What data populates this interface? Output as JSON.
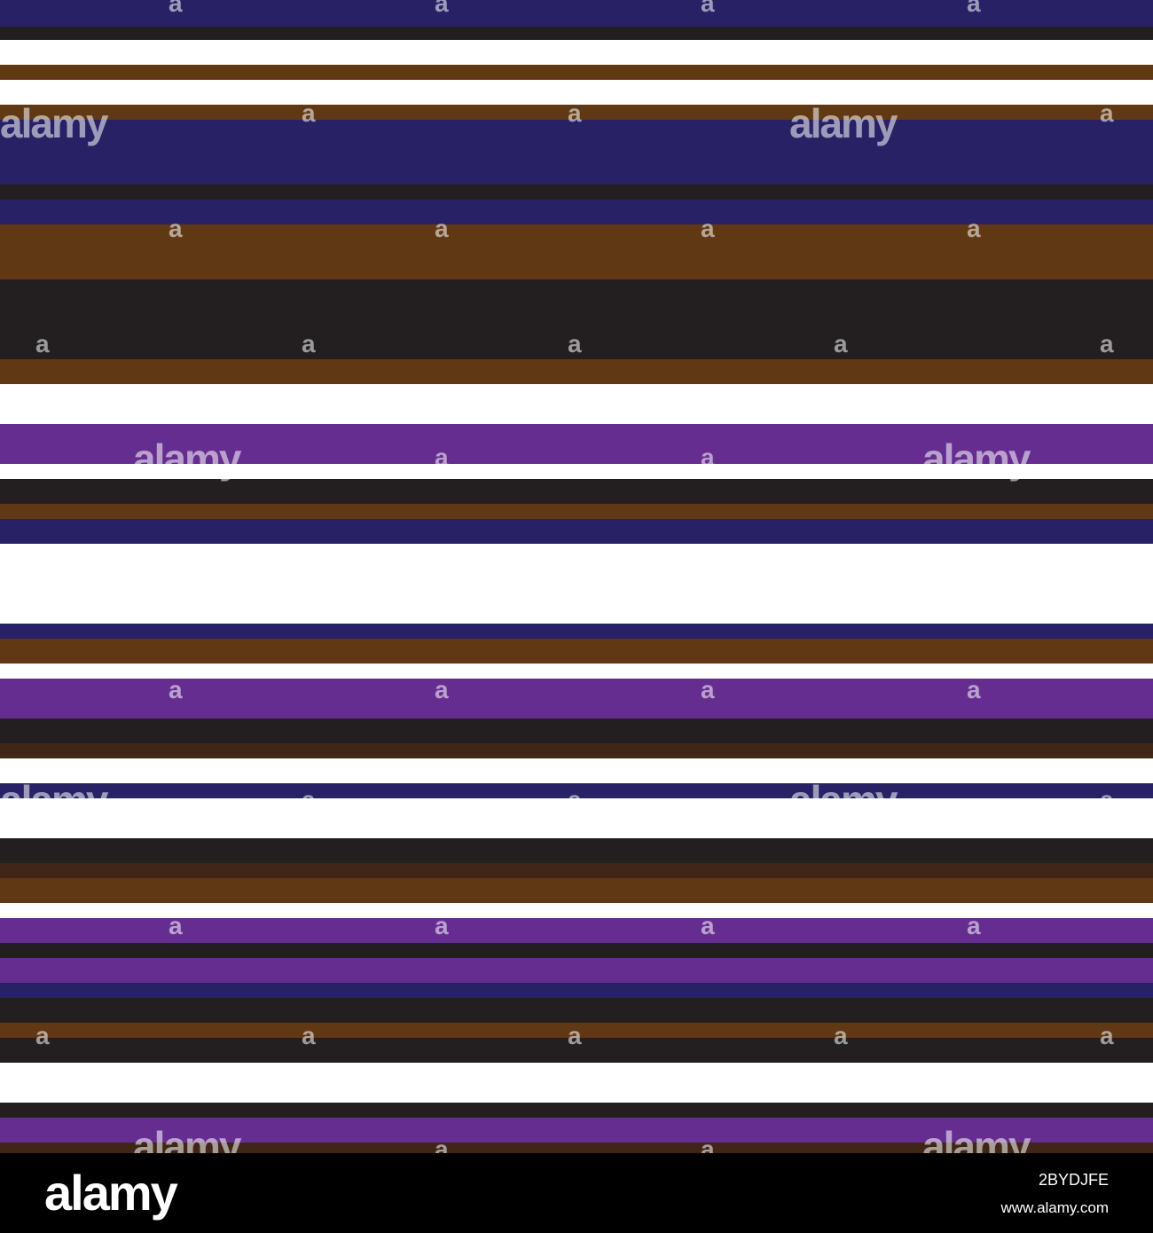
{
  "colors": {
    "navy": "#282165",
    "black": "#231f20",
    "brown": "#613814",
    "dark_brown": "#3f2617",
    "purple": "#662d91",
    "white": "#ffffff"
  },
  "stripes": [
    {
      "color": "navy",
      "h": 30
    },
    {
      "color": "black",
      "h": 15
    },
    {
      "color": "white",
      "h": 28
    },
    {
      "color": "brown",
      "h": 17
    },
    {
      "color": "white",
      "h": 28
    },
    {
      "color": "brown",
      "h": 17
    },
    {
      "color": "navy",
      "h": 73
    },
    {
      "color": "black",
      "h": 17
    },
    {
      "color": "navy",
      "h": 28
    },
    {
      "color": "brown",
      "h": 62
    },
    {
      "color": "black",
      "h": 90
    },
    {
      "color": "brown",
      "h": 28
    },
    {
      "color": "white",
      "h": 45
    },
    {
      "color": "purple",
      "h": 45
    },
    {
      "color": "white",
      "h": 17
    },
    {
      "color": "black",
      "h": 28
    },
    {
      "color": "brown",
      "h": 17
    },
    {
      "color": "navy",
      "h": 28
    },
    {
      "color": "white",
      "h": 90
    },
    {
      "color": "navy",
      "h": 17
    },
    {
      "color": "brown",
      "h": 28
    },
    {
      "color": "white",
      "h": 17
    },
    {
      "color": "purple",
      "h": 45
    },
    {
      "color": "black",
      "h": 28
    },
    {
      "color": "dark_brown",
      "h": 17
    },
    {
      "color": "white",
      "h": 28
    },
    {
      "color": "navy",
      "h": 17
    },
    {
      "color": "white",
      "h": 45
    },
    {
      "color": "black",
      "h": 28
    },
    {
      "color": "dark_brown",
      "h": 17
    },
    {
      "color": "brown",
      "h": 28
    },
    {
      "color": "white",
      "h": 17
    },
    {
      "color": "purple",
      "h": 28
    },
    {
      "color": "black",
      "h": 17
    },
    {
      "color": "purple",
      "h": 28
    },
    {
      "color": "navy",
      "h": 17
    },
    {
      "color": "black",
      "h": 28
    },
    {
      "color": "brown",
      "h": 17
    },
    {
      "color": "black",
      "h": 28
    },
    {
      "color": "white",
      "h": 45
    },
    {
      "color": "black",
      "h": 17
    },
    {
      "color": "purple",
      "h": 28
    },
    {
      "color": "dark_brown",
      "h": 17
    }
  ],
  "watermark": {
    "word": "alamy",
    "letter": "a"
  },
  "footer": {
    "logo": "alamy",
    "image_id": "2BYDJFE",
    "url": "www.alamy.com"
  }
}
